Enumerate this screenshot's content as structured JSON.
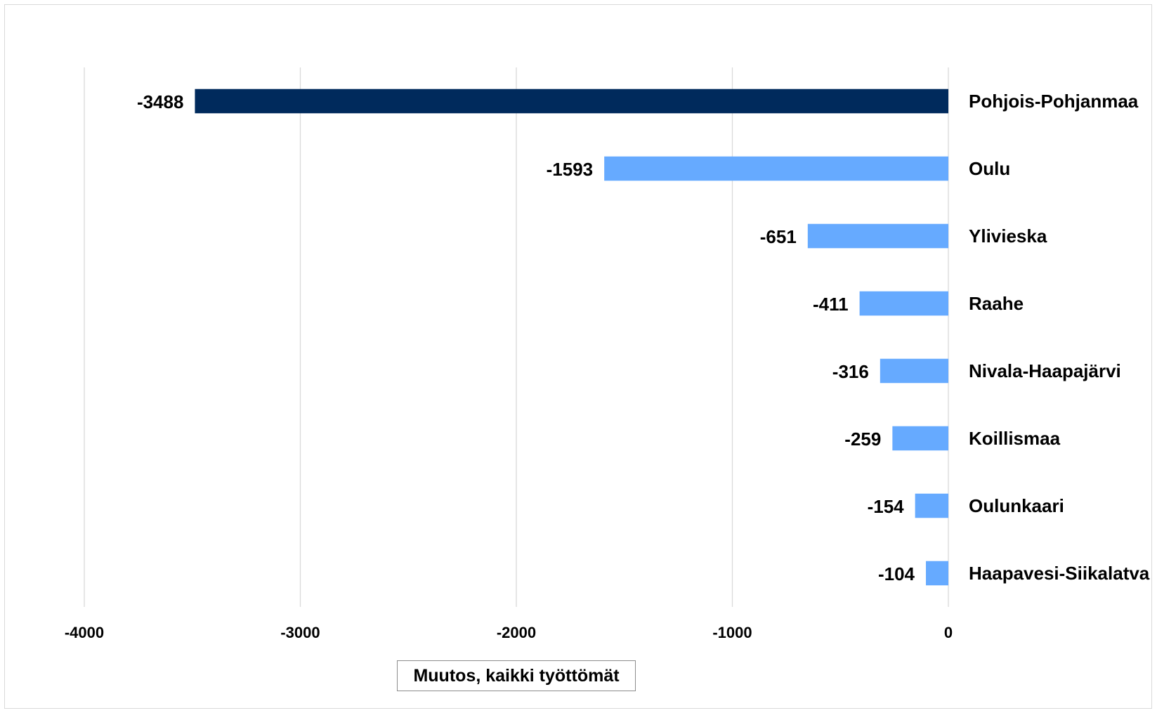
{
  "chart_data": {
    "type": "bar",
    "orientation": "horizontal",
    "title": "",
    "xlabel": "Muutos, kaikki työttömät",
    "ylabel": "",
    "categories": [
      "Pohjois-Pohjanmaa",
      "Oulu",
      "Ylivieska",
      "Raahe",
      "Nivala-Haapajärvi",
      "Koillismaa",
      "Oulunkaari",
      "Haapavesi-Siikalatva"
    ],
    "values": [
      -3488,
      -1593,
      -651,
      -411,
      -316,
      -259,
      -154,
      -104
    ],
    "data_labels": [
      "-3488",
      "-1593",
      "-651",
      "-411",
      "-316",
      "-259",
      "-154",
      "-104"
    ],
    "bar_colors": [
      "#002A5C",
      "#66AAFF",
      "#66AAFF",
      "#66AAFF",
      "#66AAFF",
      "#66AAFF",
      "#66AAFF",
      "#66AAFF"
    ],
    "xlim": [
      -4000,
      0
    ],
    "xticks": [
      -4000,
      -3000,
      -2000,
      -1000,
      0
    ],
    "xtick_labels": [
      "-4000",
      "-3000",
      "-2000",
      "-1000",
      "0"
    ],
    "grid": "vertical",
    "legend": "none"
  }
}
